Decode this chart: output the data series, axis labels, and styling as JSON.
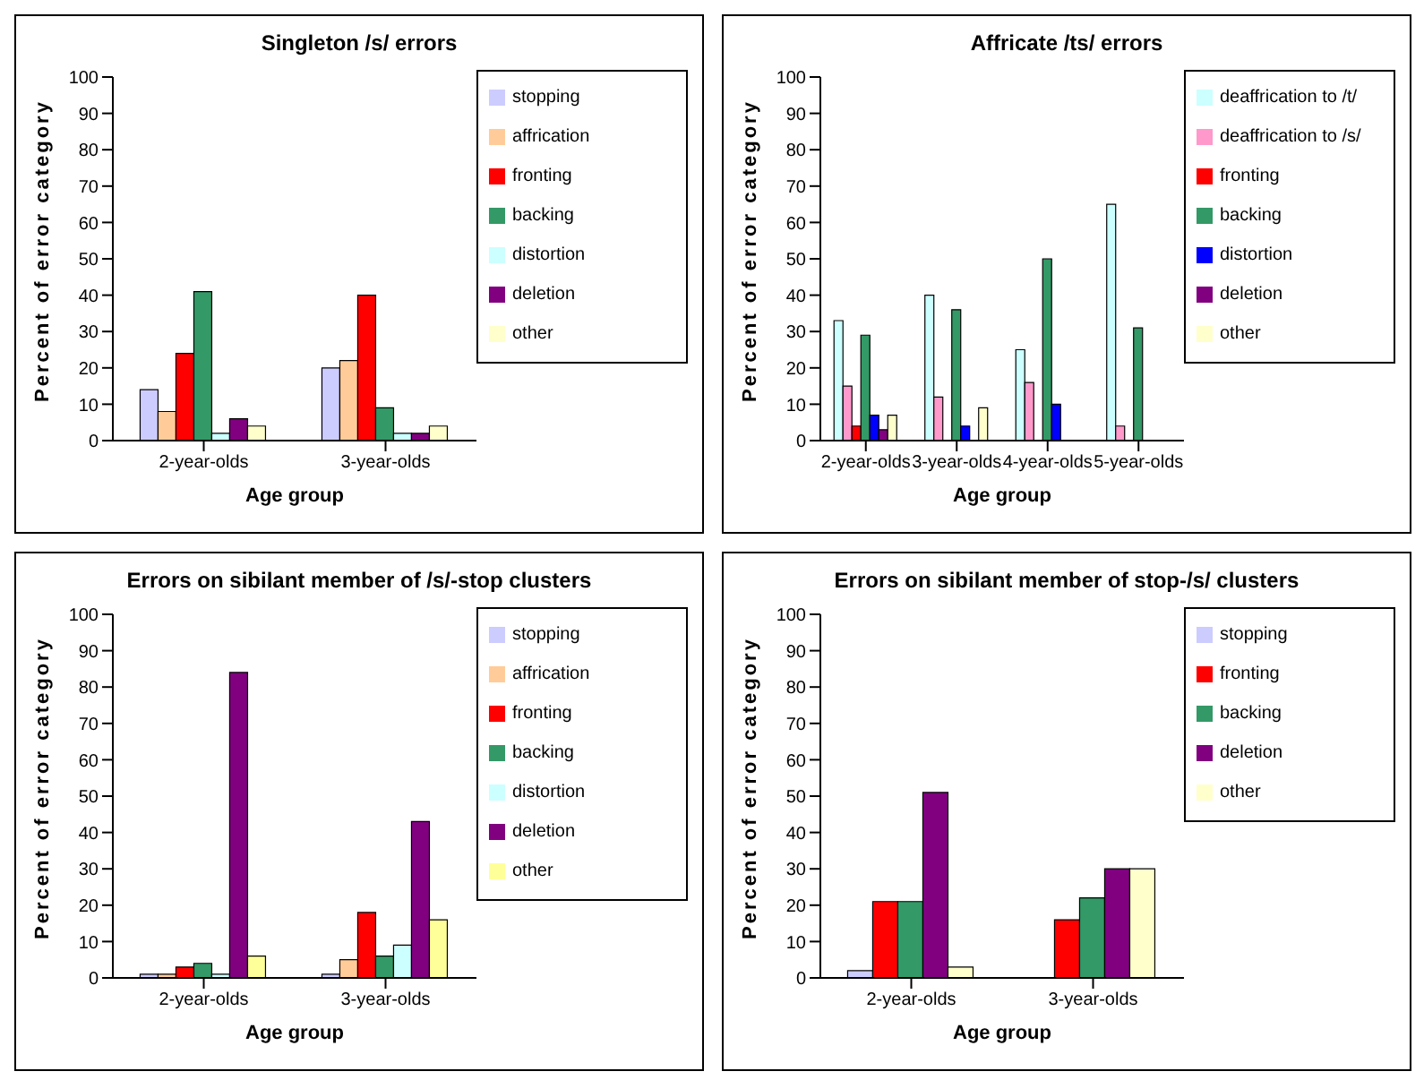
{
  "chart_data": [
    {
      "type": "bar",
      "title": "Singleton /s/ errors",
      "xlabel": "Age group",
      "ylabel": "Percent of error category",
      "categories": [
        "2-year-olds",
        "3-year-olds"
      ],
      "ylim": [
        0,
        100
      ],
      "yticks": [
        0,
        10,
        20,
        30,
        40,
        50,
        60,
        70,
        80,
        90,
        100
      ],
      "grid": false,
      "legend": "right",
      "series": [
        {
          "name": "stopping",
          "color": "#ccccff",
          "values": [
            14,
            20
          ]
        },
        {
          "name": "affrication",
          "color": "#ffcc99",
          "values": [
            8,
            22
          ]
        },
        {
          "name": "fronting",
          "color": "#ff0000",
          "values": [
            24,
            40
          ]
        },
        {
          "name": "backing",
          "color": "#339966",
          "values": [
            41,
            9
          ]
        },
        {
          "name": "distortion",
          "color": "#ccffff",
          "values": [
            2,
            2
          ]
        },
        {
          "name": "deletion",
          "color": "#800080",
          "values": [
            6,
            2
          ]
        },
        {
          "name": "other",
          "color": "#ffffcc",
          "values": [
            4,
            4
          ]
        }
      ]
    },
    {
      "type": "bar",
      "title": "Affricate /ts/ errors",
      "xlabel": "Age group",
      "ylabel": "Percent of error category",
      "categories": [
        "2-year-olds",
        "3-year-olds",
        "4-year-olds",
        "5-year-olds"
      ],
      "ylim": [
        0,
        100
      ],
      "yticks": [
        0,
        10,
        20,
        30,
        40,
        50,
        60,
        70,
        80,
        90,
        100
      ],
      "grid": false,
      "legend": "right",
      "series": [
        {
          "name": "deaffrication to /t/",
          "color": "#ccffff",
          "values": [
            33,
            40,
            25,
            65
          ]
        },
        {
          "name": "deaffrication to /s/",
          "color": "#ff99cc",
          "values": [
            15,
            12,
            16,
            4
          ]
        },
        {
          "name": "fronting",
          "color": "#ff0000",
          "values": [
            4,
            0,
            0,
            0
          ]
        },
        {
          "name": "backing",
          "color": "#339966",
          "values": [
            29,
            36,
            50,
            31
          ]
        },
        {
          "name": "distortion",
          "color": "#0000ff",
          "values": [
            7,
            4,
            10,
            0
          ]
        },
        {
          "name": "deletion",
          "color": "#800080",
          "values": [
            3,
            0,
            0,
            0
          ]
        },
        {
          "name": "other",
          "color": "#ffffcc",
          "values": [
            7,
            9,
            0,
            0
          ]
        }
      ]
    },
    {
      "type": "bar",
      "title": "Errors on sibilant member of /s/-stop clusters",
      "xlabel": "Age group",
      "ylabel": "Percent of error category",
      "categories": [
        "2-year-olds",
        "3-year-olds"
      ],
      "ylim": [
        0,
        100
      ],
      "yticks": [
        0,
        10,
        20,
        30,
        40,
        50,
        60,
        70,
        80,
        90,
        100
      ],
      "grid": false,
      "legend": "right",
      "series": [
        {
          "name": "stopping",
          "color": "#ccccff",
          "values": [
            1,
            1
          ]
        },
        {
          "name": "affrication",
          "color": "#ffcc99",
          "values": [
            1,
            5
          ]
        },
        {
          "name": "fronting",
          "color": "#ff0000",
          "values": [
            3,
            18
          ]
        },
        {
          "name": "backing",
          "color": "#339966",
          "values": [
            4,
            6
          ]
        },
        {
          "name": "distortion",
          "color": "#ccffff",
          "values": [
            1,
            9
          ]
        },
        {
          "name": "deletion",
          "color": "#800080",
          "values": [
            84,
            43
          ]
        },
        {
          "name": "other",
          "color": "#ffff99",
          "values": [
            6,
            16
          ]
        }
      ]
    },
    {
      "type": "bar",
      "title": "Errors on sibilant member of stop-/s/ clusters",
      "xlabel": "Age group",
      "ylabel": "Percent of error category",
      "categories": [
        "2-year-olds",
        "3-year-olds"
      ],
      "ylim": [
        0,
        100
      ],
      "yticks": [
        0,
        10,
        20,
        30,
        40,
        50,
        60,
        70,
        80,
        90,
        100
      ],
      "grid": false,
      "legend": "right",
      "series": [
        {
          "name": "stopping",
          "color": "#ccccff",
          "values": [
            2,
            0
          ]
        },
        {
          "name": "fronting",
          "color": "#ff0000",
          "values": [
            21,
            16
          ]
        },
        {
          "name": "backing",
          "color": "#339966",
          "values": [
            21,
            22
          ]
        },
        {
          "name": "deletion",
          "color": "#800080",
          "values": [
            51,
            30
          ]
        },
        {
          "name": "other",
          "color": "#ffffcc",
          "values": [
            3,
            30
          ]
        }
      ]
    }
  ]
}
